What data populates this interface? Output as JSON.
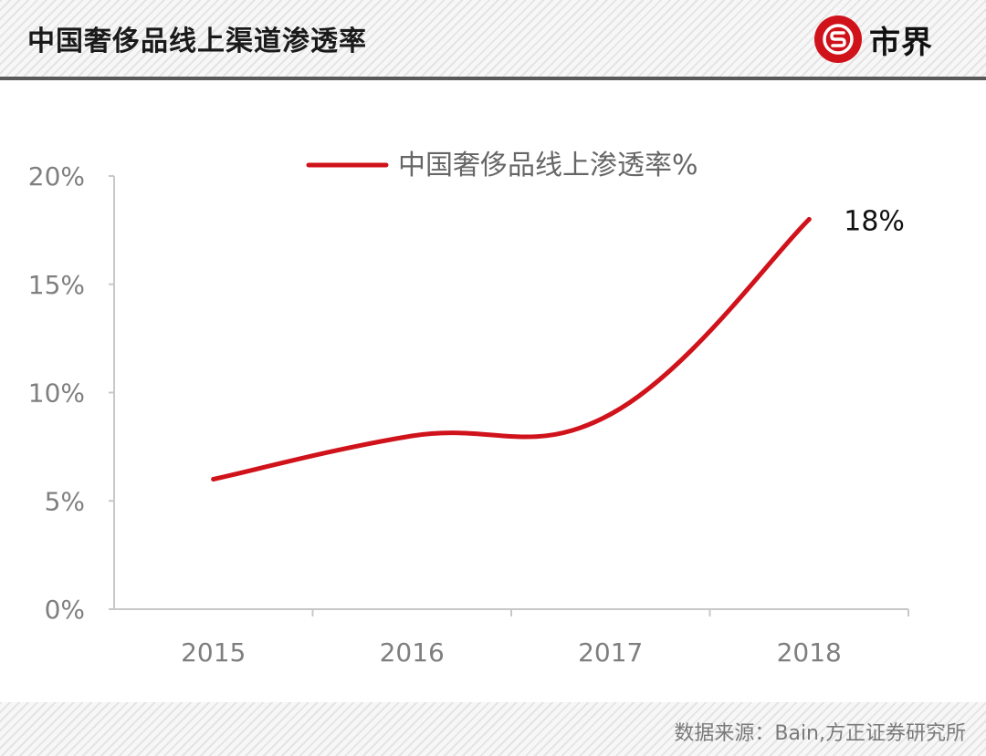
{
  "header": {
    "title": "中国奢侈品线上渠道渗透率",
    "brand_name": "市界",
    "brand_icon": "s-logo-icon",
    "brand_color": "#d0121b"
  },
  "footer": {
    "source": "数据来源：Bain,方正证券研究所"
  },
  "chart_data": {
    "type": "line",
    "x": [
      "2015",
      "2016",
      "2017",
      "2018"
    ],
    "series": [
      {
        "name": "中国奢侈品线上渗透率%",
        "values": [
          6,
          8,
          9,
          18
        ],
        "color": "#d0121b"
      }
    ],
    "y_ticks": [
      "0%",
      "5%",
      "10%",
      "15%",
      "20%"
    ],
    "ylim": [
      0,
      20
    ],
    "data_labels": [
      {
        "index": 3,
        "text": "18%"
      }
    ],
    "legend_position": "top",
    "grid": false
  }
}
